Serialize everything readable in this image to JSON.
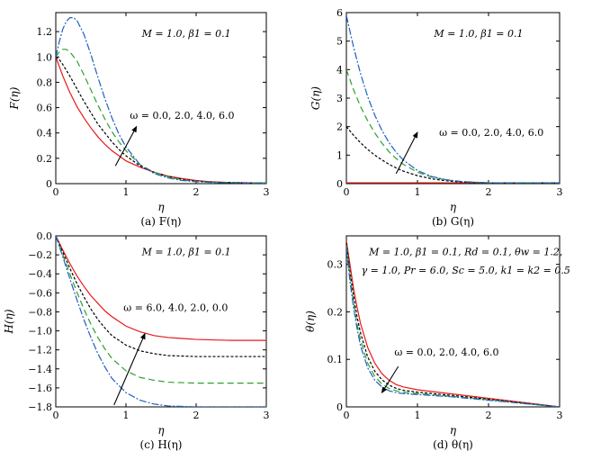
{
  "chart_data": [
    {
      "type": "line",
      "caption": "(a) F(η)",
      "xlabel": "η",
      "ylabel": "F(η)",
      "xlim": [
        0,
        3
      ],
      "ylim": [
        0,
        1.35
      ],
      "xticks": [
        0,
        1,
        2,
        3
      ],
      "xtick_labels": [
        "0",
        "1",
        "2",
        "3"
      ],
      "yticks": [
        0,
        0.2,
        0.4,
        0.6,
        0.8,
        1.0,
        1.2
      ],
      "ytick_labels": [
        "0",
        "0.2",
        "0.4",
        "0.6",
        "0.8",
        "1.0",
        "1.2"
      ],
      "params": "M = 1.0, β1 = 0.1",
      "annotation": "ω = 0.0, 2.0, 4.0, 6.0",
      "arrow": {
        "from": [
          0.85,
          0.14
        ],
        "to": [
          1.15,
          0.45
        ]
      },
      "series": [
        {
          "omega": "0.0",
          "color": "#e8191b",
          "dash": "",
          "x": [
            0,
            0.1,
            0.2,
            0.3,
            0.4,
            0.5,
            0.6,
            0.7,
            0.8,
            0.9,
            1.0,
            1.2,
            1.4,
            1.6,
            1.8,
            2.0,
            2.2,
            2.5,
            3.0
          ],
          "y": [
            1.0,
            0.85,
            0.72,
            0.61,
            0.52,
            0.44,
            0.37,
            0.31,
            0.26,
            0.22,
            0.18,
            0.13,
            0.09,
            0.06,
            0.04,
            0.025,
            0.015,
            0.008,
            0.005
          ]
        },
        {
          "omega": "2.0",
          "color": "#000000",
          "dash": "3,2",
          "x": [
            0,
            0.05,
            0.1,
            0.2,
            0.3,
            0.4,
            0.5,
            0.6,
            0.7,
            0.8,
            0.9,
            1.0,
            1.2,
            1.4,
            1.6,
            1.8,
            2.0,
            2.3,
            3.0
          ],
          "y": [
            1.0,
            0.98,
            0.94,
            0.85,
            0.75,
            0.65,
            0.56,
            0.47,
            0.4,
            0.33,
            0.27,
            0.22,
            0.14,
            0.09,
            0.055,
            0.035,
            0.02,
            0.01,
            0.005
          ]
        },
        {
          "omega": "4.0",
          "color": "#2ca02c",
          "dash": "7,4",
          "x": [
            0,
            0.05,
            0.1,
            0.15,
            0.2,
            0.3,
            0.4,
            0.5,
            0.6,
            0.7,
            0.8,
            0.9,
            1.0,
            1.2,
            1.4,
            1.6,
            1.8,
            2.0,
            2.3,
            3.0
          ],
          "y": [
            1.0,
            1.04,
            1.06,
            1.06,
            1.04,
            0.97,
            0.86,
            0.74,
            0.62,
            0.51,
            0.41,
            0.33,
            0.26,
            0.15,
            0.09,
            0.055,
            0.03,
            0.018,
            0.01,
            0.005
          ]
        },
        {
          "omega": "6.0",
          "color": "#1f5fbf",
          "dash": "8,2,2,2",
          "x": [
            0,
            0.05,
            0.1,
            0.15,
            0.2,
            0.25,
            0.3,
            0.4,
            0.5,
            0.6,
            0.7,
            0.8,
            0.9,
            1.0,
            1.2,
            1.4,
            1.6,
            1.8,
            2.0,
            2.3,
            3.0
          ],
          "y": [
            1.0,
            1.12,
            1.22,
            1.28,
            1.31,
            1.31,
            1.29,
            1.18,
            1.02,
            0.84,
            0.67,
            0.52,
            0.39,
            0.29,
            0.15,
            0.08,
            0.045,
            0.025,
            0.015,
            0.008,
            0.005
          ]
        }
      ]
    },
    {
      "type": "line",
      "caption": "(b) G(η)",
      "xlabel": "η",
      "ylabel": "G(η)",
      "xlim": [
        0,
        3
      ],
      "ylim": [
        0,
        6
      ],
      "xticks": [
        0,
        1,
        2,
        3
      ],
      "xtick_labels": [
        "0",
        "1",
        "2",
        "3"
      ],
      "yticks": [
        0,
        1,
        2,
        3,
        4,
        5,
        6
      ],
      "ytick_labels": [
        "0",
        "1",
        "2",
        "3",
        "4",
        "5",
        "6"
      ],
      "params": "M = 1.0, β1 = 0.1",
      "annotation": "ω = 0.0, 2.0, 4.0, 6.0",
      "arrow": {
        "from": [
          0.7,
          0.35
        ],
        "to": [
          1.0,
          1.8
        ]
      },
      "series": [
        {
          "omega": "0.0",
          "color": "#e8191b",
          "dash": "",
          "x": [
            0,
            3
          ],
          "y": [
            0.03,
            0.03
          ]
        },
        {
          "omega": "2.0",
          "color": "#000000",
          "dash": "3,2",
          "x": [
            0,
            0.1,
            0.2,
            0.3,
            0.4,
            0.5,
            0.6,
            0.7,
            0.8,
            1.0,
            1.2,
            1.4,
            1.6,
            1.8,
            2.0,
            2.5,
            3.0
          ],
          "y": [
            2.0,
            1.7,
            1.43,
            1.2,
            1.0,
            0.83,
            0.68,
            0.55,
            0.44,
            0.28,
            0.17,
            0.1,
            0.06,
            0.04,
            0.03,
            0.03,
            0.03
          ]
        },
        {
          "omega": "4.0",
          "color": "#2ca02c",
          "dash": "7,4",
          "x": [
            0,
            0.1,
            0.2,
            0.3,
            0.4,
            0.5,
            0.6,
            0.7,
            0.8,
            1.0,
            1.2,
            1.4,
            1.6,
            1.8,
            2.0,
            2.5,
            3.0
          ],
          "y": [
            4.0,
            3.3,
            2.7,
            2.2,
            1.78,
            1.42,
            1.12,
            0.88,
            0.68,
            0.4,
            0.23,
            0.13,
            0.08,
            0.05,
            0.03,
            0.03,
            0.03
          ]
        },
        {
          "omega": "6.0",
          "color": "#1f5fbf",
          "dash": "8,2,2,2",
          "x": [
            0,
            0.1,
            0.2,
            0.3,
            0.4,
            0.5,
            0.6,
            0.7,
            0.8,
            1.0,
            1.2,
            1.4,
            1.6,
            1.8,
            2.0,
            2.5,
            3.0
          ],
          "y": [
            5.9,
            4.8,
            3.85,
            3.05,
            2.4,
            1.87,
            1.44,
            1.1,
            0.83,
            0.46,
            0.25,
            0.14,
            0.08,
            0.05,
            0.03,
            0.03,
            0.03
          ]
        }
      ]
    },
    {
      "type": "line",
      "caption": "(c) H(η)",
      "xlabel": "η",
      "ylabel": "H(η)",
      "xlim": [
        0,
        3
      ],
      "ylim": [
        -1.8,
        0
      ],
      "xticks": [
        0,
        1,
        2,
        3
      ],
      "xtick_labels": [
        "0",
        "1",
        "2",
        "3"
      ],
      "yticks": [
        0,
        -0.2,
        -0.4,
        -0.6,
        -0.8,
        -1.0,
        -1.2,
        -1.4,
        -1.6,
        -1.8
      ],
      "ytick_labels": [
        "0.0",
        "−0.2",
        "−0.4",
        "−0.6",
        "−0.8",
        "−1.0",
        "−1.2",
        "−1.4",
        "−1.6",
        "−1.8"
      ],
      "params": "M = 1.0, β1 = 0.1",
      "annotation": "ω = 6.0, 4.0, 2.0, 0.0",
      "arrow": {
        "from": [
          0.83,
          -1.78
        ],
        "to": [
          1.27,
          -1.03
        ]
      },
      "series": [
        {
          "omega": "0.0",
          "color": "#e8191b",
          "dash": "",
          "x": [
            0,
            0.1,
            0.2,
            0.3,
            0.4,
            0.5,
            0.6,
            0.7,
            0.8,
            1.0,
            1.2,
            1.4,
            1.6,
            1.8,
            2.0,
            2.5,
            3.0
          ],
          "y": [
            0,
            -0.15,
            -0.29,
            -0.42,
            -0.53,
            -0.63,
            -0.71,
            -0.79,
            -0.85,
            -0.95,
            -1.01,
            -1.05,
            -1.07,
            -1.08,
            -1.09,
            -1.1,
            -1.1
          ]
        },
        {
          "omega": "2.0",
          "color": "#000000",
          "dash": "3,2",
          "x": [
            0,
            0.1,
            0.2,
            0.3,
            0.4,
            0.5,
            0.6,
            0.7,
            0.8,
            1.0,
            1.2,
            1.4,
            1.6,
            1.8,
            2.0,
            2.5,
            3.0
          ],
          "y": [
            0,
            -0.17,
            -0.34,
            -0.5,
            -0.64,
            -0.77,
            -0.88,
            -0.97,
            -1.05,
            -1.15,
            -1.21,
            -1.24,
            -1.26,
            -1.265,
            -1.27,
            -1.27,
            -1.27
          ]
        },
        {
          "omega": "4.0",
          "color": "#2ca02c",
          "dash": "7,4",
          "x": [
            0,
            0.1,
            0.2,
            0.3,
            0.4,
            0.5,
            0.6,
            0.7,
            0.8,
            1.0,
            1.2,
            1.4,
            1.6,
            1.8,
            2.0,
            2.5,
            3.0
          ],
          "y": [
            0,
            -0.2,
            -0.4,
            -0.59,
            -0.77,
            -0.93,
            -1.07,
            -1.19,
            -1.29,
            -1.42,
            -1.49,
            -1.52,
            -1.54,
            -1.545,
            -1.55,
            -1.55,
            -1.55
          ]
        },
        {
          "omega": "6.0",
          "color": "#1f5fbf",
          "dash": "8,2,2,2",
          "x": [
            0,
            0.1,
            0.2,
            0.3,
            0.4,
            0.5,
            0.6,
            0.7,
            0.8,
            1.0,
            1.2,
            1.4,
            1.6,
            1.8,
            2.0,
            2.5,
            3.0
          ],
          "y": [
            0,
            -0.22,
            -0.45,
            -0.67,
            -0.88,
            -1.07,
            -1.24,
            -1.38,
            -1.5,
            -1.65,
            -1.73,
            -1.77,
            -1.79,
            -1.795,
            -1.8,
            -1.8,
            -1.8
          ]
        }
      ]
    },
    {
      "type": "line",
      "caption": "(d) θ(η)",
      "xlabel": "η",
      "ylabel": "θ(η)",
      "xlim": [
        0,
        3
      ],
      "ylim": [
        0,
        0.36
      ],
      "xticks": [
        0,
        1,
        2,
        3
      ],
      "xtick_labels": [
        "0",
        "1",
        "2",
        "3"
      ],
      "yticks": [
        0,
        0.1,
        0.2,
        0.3
      ],
      "ytick_labels": [
        "0",
        "0.1",
        "0.2",
        "0.3"
      ],
      "params": "M = 1.0, β1 = 0.1, Rd = 0.1, θw = 1.2,",
      "params2": "γ = 1.0, Pr = 6.0, Sc = 5.0, k1 = k2 = 0.5",
      "annotation": "ω = 0.0, 2.0, 4.0, 6.0",
      "arrow": {
        "from": [
          0.73,
          0.085
        ],
        "to": [
          0.5,
          0.03
        ]
      },
      "series": [
        {
          "omega": "0.0",
          "color": "#e8191b",
          "dash": "",
          "x": [
            0,
            0.05,
            0.1,
            0.15,
            0.2,
            0.3,
            0.4,
            0.5,
            0.6,
            0.7,
            0.8,
            1.0,
            1.5,
            2.0,
            2.5,
            3.0
          ],
          "y": [
            0.35,
            0.3,
            0.25,
            0.21,
            0.175,
            0.125,
            0.092,
            0.07,
            0.056,
            0.047,
            0.042,
            0.036,
            0.027,
            0.018,
            0.009,
            0.0
          ]
        },
        {
          "omega": "2.0",
          "color": "#000000",
          "dash": "3,2",
          "x": [
            0,
            0.05,
            0.1,
            0.15,
            0.2,
            0.3,
            0.4,
            0.5,
            0.6,
            0.7,
            0.8,
            1.0,
            1.5,
            2.0,
            2.5,
            3.0
          ],
          "y": [
            0.345,
            0.285,
            0.235,
            0.19,
            0.155,
            0.105,
            0.075,
            0.057,
            0.046,
            0.039,
            0.035,
            0.031,
            0.024,
            0.016,
            0.008,
            0.0
          ]
        },
        {
          "omega": "4.0",
          "color": "#2ca02c",
          "dash": "7,4",
          "x": [
            0,
            0.05,
            0.1,
            0.15,
            0.2,
            0.3,
            0.4,
            0.5,
            0.6,
            0.7,
            0.8,
            1.0,
            1.5,
            2.0,
            2.5,
            3.0
          ],
          "y": [
            0.34,
            0.275,
            0.22,
            0.175,
            0.14,
            0.092,
            0.064,
            0.048,
            0.039,
            0.034,
            0.031,
            0.028,
            0.022,
            0.015,
            0.007,
            0.0
          ]
        },
        {
          "omega": "6.0",
          "color": "#1f5fbf",
          "dash": "8,2,2,2",
          "x": [
            0,
            0.05,
            0.1,
            0.15,
            0.2,
            0.3,
            0.4,
            0.5,
            0.6,
            0.7,
            0.8,
            1.0,
            1.5,
            2.0,
            2.5,
            3.0
          ],
          "y": [
            0.335,
            0.265,
            0.21,
            0.165,
            0.128,
            0.082,
            0.056,
            0.042,
            0.034,
            0.03,
            0.028,
            0.026,
            0.021,
            0.014,
            0.007,
            0.0
          ]
        }
      ]
    }
  ]
}
